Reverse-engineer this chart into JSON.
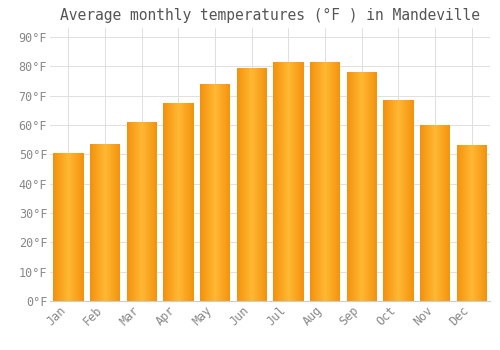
{
  "title": "Average monthly temperatures (°F ) in Mandeville",
  "months": [
    "Jan",
    "Feb",
    "Mar",
    "Apr",
    "May",
    "Jun",
    "Jul",
    "Aug",
    "Sep",
    "Oct",
    "Nov",
    "Dec"
  ],
  "values": [
    50.5,
    53.5,
    61.0,
    67.5,
    74.0,
    79.5,
    81.5,
    81.5,
    78.0,
    68.5,
    60.0,
    53.0
  ],
  "bar_color_center": "#FFB733",
  "bar_color_edge": "#F0900A",
  "background_color": "#FFFFFF",
  "grid_color": "#E0E0E0",
  "text_color": "#888888",
  "title_color": "#555555",
  "ylim": [
    0,
    93
  ],
  "yticks": [
    0,
    10,
    20,
    30,
    40,
    50,
    60,
    70,
    80,
    90
  ],
  "title_fontsize": 10.5,
  "tick_fontsize": 8.5,
  "bar_width": 0.82
}
